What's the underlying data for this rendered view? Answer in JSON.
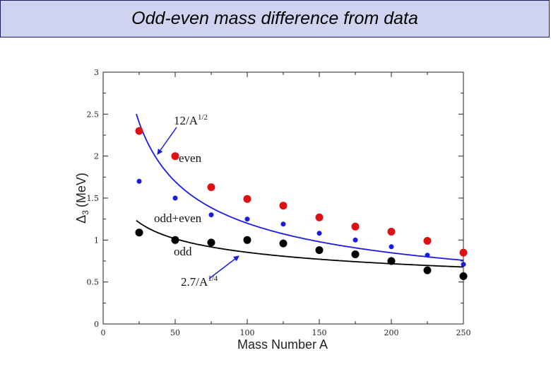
{
  "header": {
    "title": "Odd-even mass difference from data"
  },
  "chart_data": {
    "type": "scatter",
    "title": "Odd-even mass difference from data",
    "xlabel": "Mass Number A",
    "ylabel_symbol": "Δ",
    "ylabel_subscript": "3",
    "ylabel_unit": "(MeV)",
    "xlim": [
      0,
      250
    ],
    "ylim": [
      0,
      3
    ],
    "x_ticks": [
      0,
      50,
      100,
      150,
      200,
      250
    ],
    "y_ticks": [
      0,
      0.5,
      1,
      1.5,
      2,
      2.5,
      3
    ],
    "y_tick_labels": [
      "0",
      "0.5",
      "1",
      "1.5",
      "2",
      "2.5",
      "3"
    ],
    "grid": false,
    "series": [
      {
        "name": "even",
        "color": "#dd1111",
        "size": "large",
        "x": [
          25,
          50,
          75,
          100,
          125,
          150,
          175,
          200,
          225,
          250
        ],
        "y": [
          2.3,
          2.0,
          1.63,
          1.49,
          1.41,
          1.27,
          1.16,
          1.1,
          0.99,
          0.85
        ]
      },
      {
        "name": "odd+even",
        "color": "#1a1ae6",
        "size": "small",
        "x": [
          25,
          50,
          75,
          100,
          125,
          150,
          175,
          200,
          225,
          250
        ],
        "y": [
          1.7,
          1.5,
          1.3,
          1.25,
          1.19,
          1.08,
          1.0,
          0.92,
          0.82,
          0.71
        ]
      },
      {
        "name": "odd",
        "color": "#000000",
        "size": "large",
        "x": [
          25,
          50,
          75,
          100,
          125,
          150,
          175,
          200,
          225,
          250
        ],
        "y": [
          1.09,
          1.0,
          0.97,
          1.0,
          0.96,
          0.88,
          0.83,
          0.75,
          0.64,
          0.57
        ]
      }
    ],
    "curves": [
      {
        "name": "12/A^1/2",
        "formula": "12/sqrt(A)",
        "coef": 12,
        "power": 0.5,
        "x_range": [
          23,
          250
        ],
        "color": "#1a1ae6"
      },
      {
        "name": "2.7/A^1/4",
        "formula": "2.7/A^0.25",
        "coef": 2.7,
        "power": 0.25,
        "x_range": [
          23,
          250
        ],
        "color": "#000000"
      }
    ],
    "annotations": {
      "blue_curve": {
        "base": "12/A",
        "exp": "1/2"
      },
      "black_curve": {
        "base": "2.7/A",
        "exp": "1/4"
      },
      "even": "even",
      "odd_even": "odd+even",
      "odd": "odd"
    }
  }
}
